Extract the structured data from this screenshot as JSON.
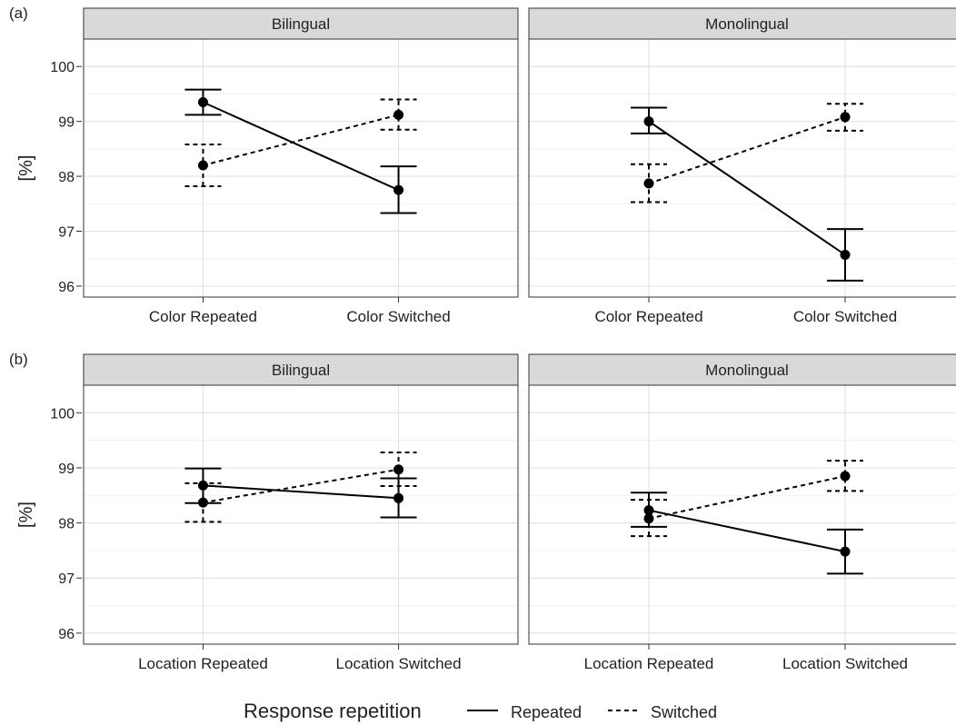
{
  "legend": {
    "title": "Response repetition",
    "repeated_label": "Repeated",
    "switched_label": "Switched"
  },
  "colors": {
    "strip_fill": "#d9d9d9",
    "grid_major": "#e3e3e3",
    "grid_minor": "#f1f1f1",
    "ink": "#000000"
  },
  "chart_data": [
    {
      "type": "line",
      "panel_label": "(a)",
      "ylabel": "[%]",
      "ylim": [
        95.8,
        100.5
      ],
      "yticks": [
        96,
        97,
        98,
        99,
        100
      ],
      "grid": true,
      "legend_position": "bottom",
      "facets": [
        {
          "strip": "Bilingual",
          "categories": [
            "Color Repeated",
            "Color Switched"
          ],
          "series": [
            {
              "name": "Repeated",
              "linetype": "solid",
              "values": [
                99.35,
                97.75
              ],
              "ci_low": [
                99.12,
                97.33
              ],
              "ci_high": [
                99.58,
                98.18
              ]
            },
            {
              "name": "Switched",
              "linetype": "dashed",
              "values": [
                98.2,
                99.12
              ],
              "ci_low": [
                97.82,
                98.85
              ],
              "ci_high": [
                98.58,
                99.4
              ]
            }
          ]
        },
        {
          "strip": "Monolingual",
          "categories": [
            "Color Repeated",
            "Color Switched"
          ],
          "series": [
            {
              "name": "Repeated",
              "linetype": "solid",
              "values": [
                99.0,
                96.57
              ],
              "ci_low": [
                98.78,
                96.1
              ],
              "ci_high": [
                99.25,
                97.04
              ]
            },
            {
              "name": "Switched",
              "linetype": "dashed",
              "values": [
                97.87,
                99.08
              ],
              "ci_low": [
                97.53,
                98.83
              ],
              "ci_high": [
                98.22,
                99.32
              ]
            }
          ]
        }
      ]
    },
    {
      "type": "line",
      "panel_label": "(b)",
      "ylabel": "[%]",
      "ylim": [
        95.8,
        100.5
      ],
      "yticks": [
        96,
        97,
        98,
        99,
        100
      ],
      "grid": true,
      "legend_position": "bottom",
      "facets": [
        {
          "strip": "Bilingual",
          "categories": [
            "Location Repeated",
            "Location Switched"
          ],
          "series": [
            {
              "name": "Repeated",
              "linetype": "solid",
              "values": [
                98.68,
                98.45
              ],
              "ci_low": [
                98.36,
                98.1
              ],
              "ci_high": [
                98.99,
                98.81
              ]
            },
            {
              "name": "Switched",
              "linetype": "dashed",
              "values": [
                98.37,
                98.97
              ],
              "ci_low": [
                98.02,
                98.67
              ],
              "ci_high": [
                98.72,
                99.28
              ]
            }
          ]
        },
        {
          "strip": "Monolingual",
          "categories": [
            "Location Repeated",
            "Location Switched"
          ],
          "series": [
            {
              "name": "Repeated",
              "linetype": "solid",
              "values": [
                98.23,
                97.48
              ],
              "ci_low": [
                97.93,
                97.08
              ],
              "ci_high": [
                98.55,
                97.88
              ]
            },
            {
              "name": "Switched",
              "linetype": "dashed",
              "values": [
                98.08,
                98.85
              ],
              "ci_low": [
                97.76,
                98.58
              ],
              "ci_high": [
                98.42,
                99.13
              ]
            }
          ]
        }
      ]
    }
  ]
}
